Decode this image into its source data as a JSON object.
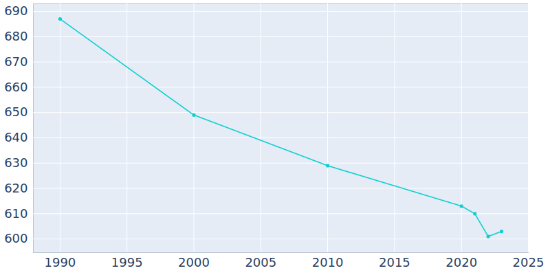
{
  "chart_data": {
    "type": "line",
    "x": [
      1990,
      2000,
      2010,
      2020,
      2021,
      2022,
      2023
    ],
    "values": [
      687,
      649,
      629,
      613,
      610,
      601,
      603
    ],
    "color": "#0fcfcf",
    "marker": "circle",
    "xlim": [
      1988,
      2025
    ],
    "xticks": [
      1990,
      1995,
      2000,
      2005,
      2010,
      2015,
      2020,
      2025
    ],
    "ylim": [
      594.6,
      693
    ],
    "yticks": [
      600,
      610,
      620,
      630,
      640,
      650,
      660,
      670,
      680,
      690
    ],
    "grid": true
  }
}
